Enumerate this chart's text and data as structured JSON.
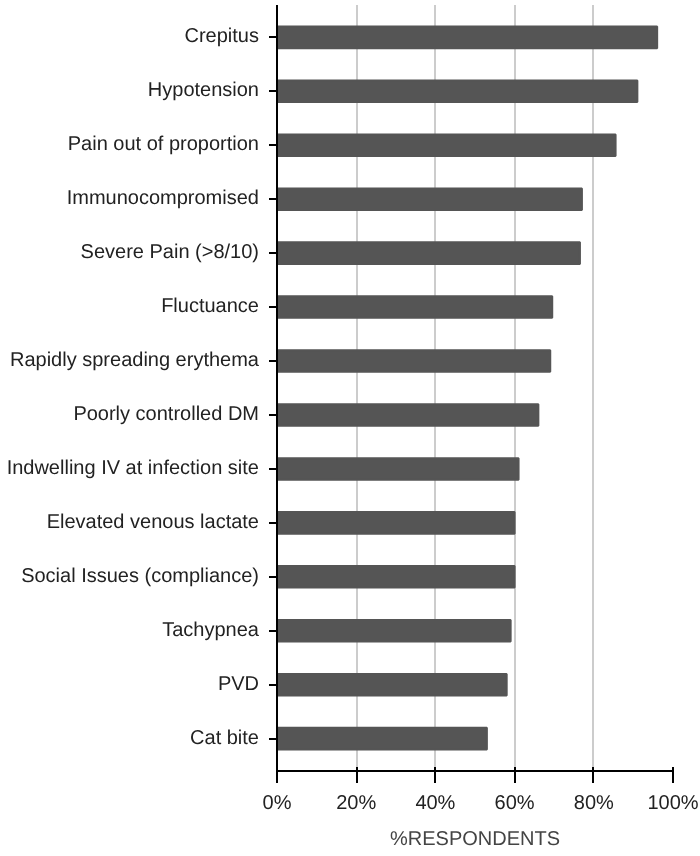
{
  "chart_data": {
    "type": "bar",
    "orientation": "horizontal",
    "xlabel": "%RESPONDENTS",
    "categories": [
      "Crepitus",
      "Hypotension",
      "Pain out of proportion",
      "Immunocompromised",
      "Severe Pain (>8/10)",
      "Fluctuance",
      "Rapidly spreading erythema",
      "Poorly controlled DM",
      "Indwelling IV at infection site",
      "Elevated venous lactate",
      "Social Issues (compliance)",
      "Tachypnea",
      "PVD",
      "Cat bite"
    ],
    "values": [
      96,
      91,
      85.5,
      77,
      76.5,
      69.5,
      69,
      66,
      61,
      60,
      60,
      59,
      58,
      53
    ],
    "color": "#555555",
    "xlim": [
      0,
      100
    ],
    "xticks": [
      {
        "value": 0,
        "label": "0%"
      },
      {
        "value": 20,
        "label": "20%"
      },
      {
        "value": 40,
        "label": "40%"
      },
      {
        "value": 60,
        "label": "60%"
      },
      {
        "value": 80,
        "label": "80%"
      },
      {
        "value": 100,
        "label": "100%"
      }
    ],
    "grid": "x"
  }
}
